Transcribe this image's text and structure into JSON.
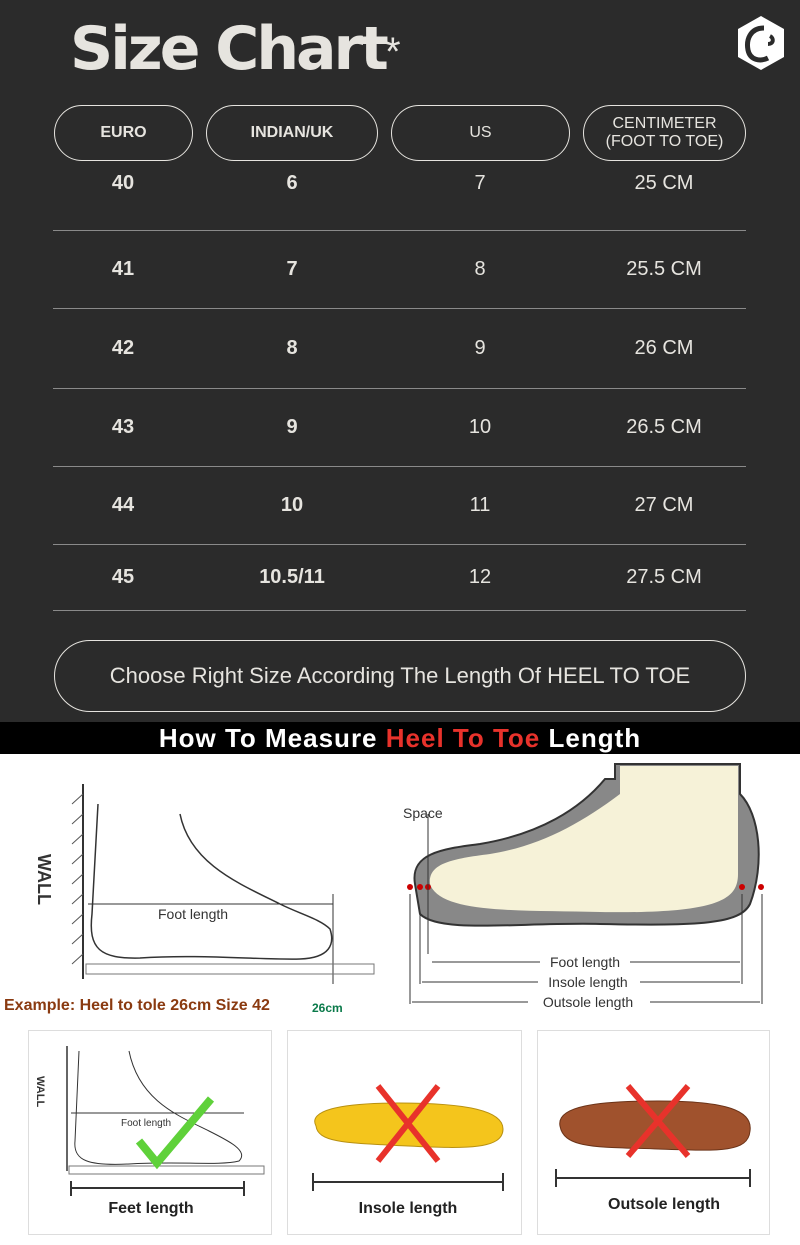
{
  "title": "Size Chart",
  "title_mark": "*",
  "logo": "brand-hexagon-logo",
  "headers": [
    "EURO",
    "INDIAN/UK",
    "US",
    "CENTIMETER (FOOT TO TOE)"
  ],
  "header_lines": {
    "cm_1": "CENTIMETER",
    "cm_2": "(FOOT TO TOE)"
  },
  "rows": [
    {
      "euro": "40",
      "indian_uk": "6",
      "us": "7",
      "cm": "25 CM"
    },
    {
      "euro": "41",
      "indian_uk": "7",
      "us": "8",
      "cm": "25.5 CM"
    },
    {
      "euro": "42",
      "indian_uk": "8",
      "us": "9",
      "cm": "26 CM"
    },
    {
      "euro": "43",
      "indian_uk": "9",
      "us": "10",
      "cm": "26.5 CM"
    },
    {
      "euro": "44",
      "indian_uk": "10",
      "us": "11",
      "cm": "27 CM"
    },
    {
      "euro": "45",
      "indian_uk": "10.5/11",
      "us": "12",
      "cm": "27.5 CM"
    }
  ],
  "note": "Choose Right Size According The Length Of HEEL TO TOE",
  "banner": {
    "part1": "How To Measure ",
    "highlight": "Heel To Toe",
    "part2": " Length"
  },
  "diagram": {
    "wall": "WALL",
    "foot_length": "Foot length",
    "ruler_value": "26cm",
    "example": "Example: Heel to tole 26cm Size 42",
    "space": "Space",
    "shoe_foot_length": "Foot length",
    "insole_length": "Insole length",
    "outsole_length": "Outsole length"
  },
  "panels": [
    {
      "label": "Feet length",
      "mark": "check",
      "wall": "WALL",
      "inner": "Foot length"
    },
    {
      "label": "Insole length",
      "mark": "cross"
    },
    {
      "label": "Outsole length",
      "mark": "cross"
    }
  ],
  "colors": {
    "background": "#2b2b2b",
    "text": "#e6e4df",
    "highlight": "#e8322b",
    "check": "#5fd13a",
    "cross": "#e8322b"
  }
}
